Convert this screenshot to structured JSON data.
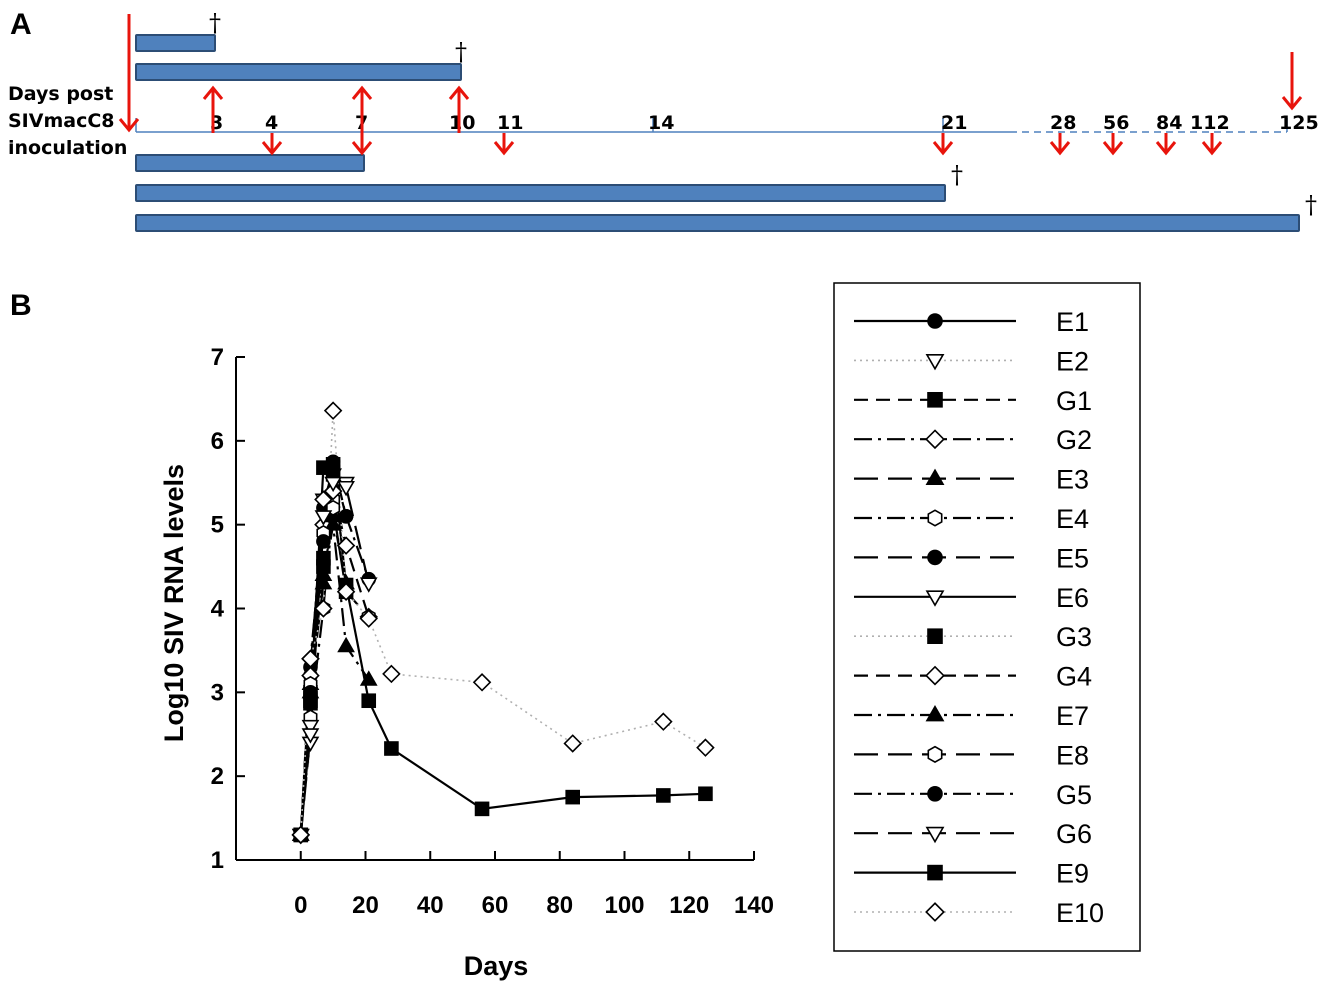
{
  "panel_a": {
    "letter": "A",
    "axis_caption_lines": [
      "Days post",
      "SIVmacC8",
      "inoculation"
    ],
    "day_labels": [
      "3",
      "4",
      "7",
      "10",
      "11",
      "14",
      "21",
      "28",
      "56",
      "84",
      "112",
      "125"
    ],
    "dagger": "†",
    "bars_above_end_days": [
      3,
      10
    ],
    "bars_below_end_days": [
      7,
      21,
      125
    ],
    "up_arrow_days": [
      3,
      7,
      10
    ],
    "down_arrow_days": [
      0,
      4,
      7,
      11,
      21,
      28,
      56,
      84,
      112,
      125
    ],
    "colors": {
      "bar": "#4f81bd",
      "bar_border": "#2c4d75",
      "arrow": "#e8140c",
      "timeline": "#4f81bd"
    }
  },
  "panel_b": {
    "letter": "B"
  },
  "chart_data": {
    "type": "line",
    "xlabel": "Days",
    "ylabel": "Log10 SIV RNA levels",
    "xlim": [
      -20,
      140
    ],
    "ylim": [
      1,
      7
    ],
    "xticks": [
      "0",
      "20",
      "40",
      "60",
      "80",
      "100",
      "120",
      "140"
    ],
    "yticks": [
      "1",
      "2",
      "3",
      "4",
      "5",
      "6",
      "7"
    ],
    "grid": false,
    "legend_position": "right",
    "series": [
      {
        "name": "E1",
        "marker": "circle",
        "filled": true,
        "dash": "solid",
        "x": [
          0,
          3
        ],
        "y": [
          1.3,
          3.2
        ]
      },
      {
        "name": "E2",
        "marker": "triangle-down",
        "filled": false,
        "dash": "dotted",
        "x": [
          0,
          3
        ],
        "y": [
          1.3,
          2.4
        ]
      },
      {
        "name": "G1",
        "marker": "square",
        "filled": true,
        "dash": "dashed",
        "x": [
          0,
          3,
          7
        ],
        "y": [
          1.3,
          3.0,
          4.5
        ]
      },
      {
        "name": "G2",
        "marker": "diamond",
        "filled": false,
        "dash": "dashdot",
        "x": [
          0,
          3,
          7,
          10
        ],
        "y": [
          1.3,
          3.4,
          5.0,
          5.4
        ]
      },
      {
        "name": "E3",
        "marker": "triangle-up",
        "filled": true,
        "dash": "longdash",
        "x": [
          0,
          3,
          7,
          10,
          14
        ],
        "y": [
          1.3,
          3.1,
          4.4,
          5.1,
          4.3
        ]
      },
      {
        "name": "E4",
        "marker": "hexagon",
        "filled": false,
        "dash": "dashdot",
        "x": [
          0,
          3,
          7,
          10
        ],
        "y": [
          1.3,
          2.7,
          4.0,
          5.3
        ]
      },
      {
        "name": "E5",
        "marker": "circle",
        "filled": true,
        "dash": "longdash",
        "x": [
          0,
          3,
          7,
          10,
          14
        ],
        "y": [
          1.3,
          3.3,
          5.2,
          5.7,
          5.1
        ]
      },
      {
        "name": "E6",
        "marker": "triangle-down",
        "filled": false,
        "dash": "solid",
        "x": [
          0,
          3,
          7,
          10,
          14
        ],
        "y": [
          1.3,
          2.6,
          5.3,
          5.6,
          5.5
        ]
      },
      {
        "name": "G3",
        "marker": "square",
        "filled": true,
        "dash": "dotted",
        "x": [
          0,
          3,
          7,
          10,
          14
        ],
        "y": [
          1.3,
          2.9,
          4.6,
          5.6,
          4.2
        ]
      },
      {
        "name": "G4",
        "marker": "diamond",
        "filled": false,
        "dash": "dashed",
        "x": [
          0,
          3,
          7,
          10,
          14,
          21
        ],
        "y": [
          1.3,
          3.2,
          5.3,
          5.4,
          4.75,
          3.9
        ]
      },
      {
        "name": "E7",
        "marker": "triangle-up",
        "filled": true,
        "dash": "dashdot",
        "x": [
          0,
          3,
          7,
          10,
          14,
          21
        ],
        "y": [
          1.3,
          3.0,
          4.3,
          5.0,
          3.55,
          3.15
        ]
      },
      {
        "name": "E8",
        "marker": "hexagon",
        "filled": false,
        "dash": "longdash",
        "x": [
          0,
          3,
          7,
          10,
          14,
          21
        ],
        "y": [
          1.3,
          3.1,
          4.9,
          5.2,
          4.2,
          3.9
        ]
      },
      {
        "name": "G5",
        "marker": "circle",
        "filled": true,
        "dash": "dashdot",
        "x": [
          0,
          3,
          7,
          10,
          14,
          21
        ],
        "y": [
          1.3,
          3.0,
          4.8,
          5.75,
          5.1,
          4.35
        ]
      },
      {
        "name": "G6",
        "marker": "triangle-down",
        "filled": false,
        "dash": "longdash",
        "x": [
          0,
          3,
          7,
          10,
          14,
          21
        ],
        "y": [
          1.3,
          2.5,
          5.1,
          5.5,
          5.45,
          4.3
        ]
      },
      {
        "name": "E9",
        "marker": "square",
        "filled": true,
        "dash": "solid",
        "x": [
          0,
          3,
          7,
          10,
          14,
          21,
          28,
          56,
          84,
          112,
          125
        ],
        "y": [
          1.3,
          2.87,
          5.68,
          5.72,
          4.28,
          2.9,
          2.33,
          1.61,
          1.75,
          1.77,
          1.79
        ]
      },
      {
        "name": "E10",
        "marker": "diamond",
        "filled": false,
        "dash": "dotted",
        "x": [
          0,
          3,
          7,
          10,
          14,
          21,
          28,
          56,
          84,
          112,
          125
        ],
        "y": [
          1.3,
          3.4,
          4.0,
          6.36,
          4.2,
          3.88,
          3.22,
          3.12,
          2.39,
          2.65,
          2.34
        ]
      }
    ]
  }
}
